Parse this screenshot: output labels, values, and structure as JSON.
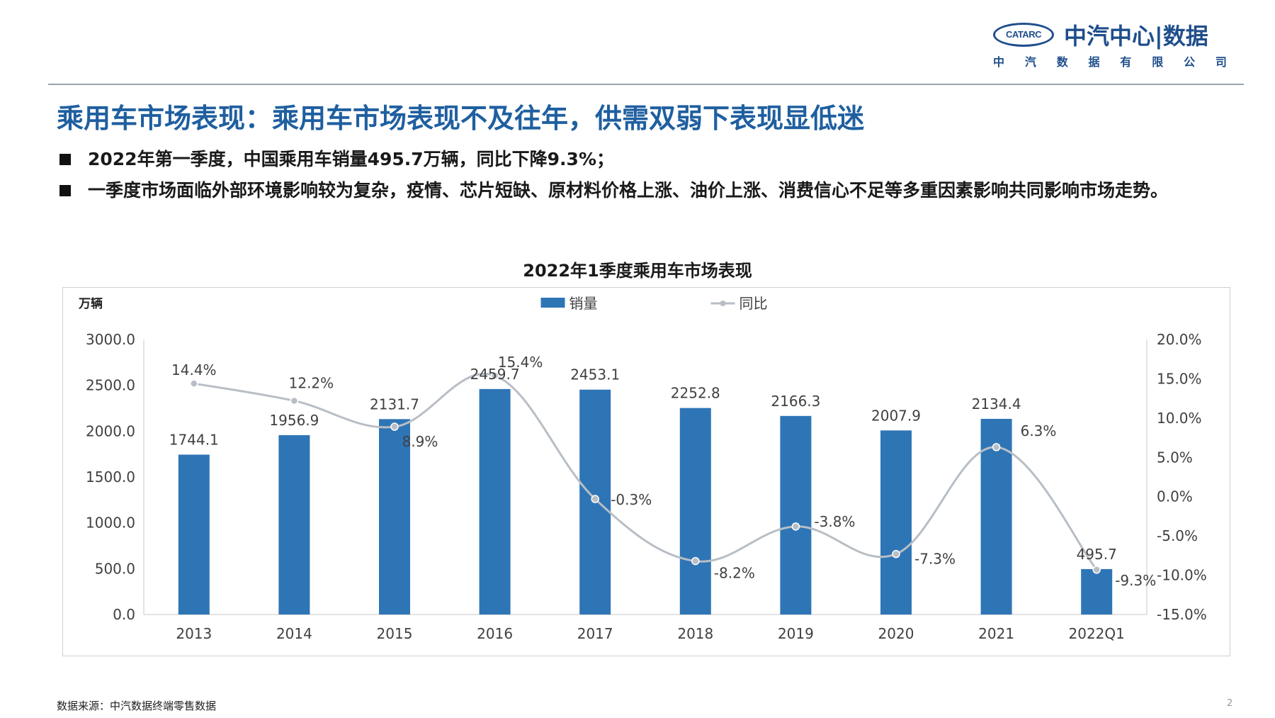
{
  "header": {
    "logo_badge": "CATARC",
    "logo_name": "中汽中心|数据",
    "logo_sub": [
      "中",
      "汽",
      "数",
      "据",
      "有",
      "限",
      "公",
      "司"
    ]
  },
  "title": "乘用车市场表现：乘用车市场表现不及往年，供需双弱下表现显低迷",
  "bullets": [
    "2022年第一季度，中国乘用车销量495.7万辆，同比下降9.3%；",
    "一季度市场面临外部环境影响较为复杂，疫情、芯片短缺、原材料价格上涨、油价上涨、消费信心不足等多重因素影响共同影响市场走势。"
  ],
  "footer": {
    "source": "数据来源：中汽数据终端零售数据",
    "page": "2"
  },
  "colors": {
    "bar": "#2e75b6",
    "line": "#b8bec5",
    "title": "#1f5fa0"
  },
  "chart_data": {
    "type": "bar",
    "title": "2022年1季度乘用车市场表现",
    "ylabel": "万辆",
    "categories": [
      "2013",
      "2014",
      "2015",
      "2016",
      "2017",
      "2018",
      "2019",
      "2020",
      "2021",
      "2022Q1"
    ],
    "series": [
      {
        "name": "销量",
        "kind": "bar",
        "axis": "left",
        "values": [
          1744.1,
          1956.9,
          2131.7,
          2459.7,
          2453.1,
          2252.8,
          2166.3,
          2007.9,
          2134.4,
          495.7
        ],
        "labels": [
          "1744.1",
          "1956.9",
          "2131.7",
          "2459.7",
          "2453.1",
          "2252.8",
          "2166.3",
          "2007.9",
          "2134.4",
          "495.7"
        ]
      },
      {
        "name": "同比",
        "kind": "line",
        "axis": "right",
        "values": [
          14.4,
          12.2,
          8.9,
          15.4,
          -0.3,
          -8.2,
          -3.8,
          -7.3,
          6.3,
          -9.3
        ],
        "labels": [
          "14.4%",
          "12.2%",
          "8.9%",
          "15.4%",
          "-0.3%",
          "-8.2%",
          "-3.8%",
          "-7.3%",
          "6.3%",
          "-9.3%"
        ]
      }
    ],
    "ylim": [
      0,
      3000
    ],
    "y2lim": [
      -15,
      20
    ],
    "yticks": [
      "0.0",
      "500.0",
      "1000.0",
      "1500.0",
      "2000.0",
      "2500.0",
      "3000.0"
    ],
    "y2ticks": [
      "-15.0%",
      "-10.0%",
      "-5.0%",
      "0.0%",
      "5.0%",
      "10.0%",
      "15.0%",
      "20.0%"
    ],
    "legend_position": "top-center",
    "grid": false
  }
}
